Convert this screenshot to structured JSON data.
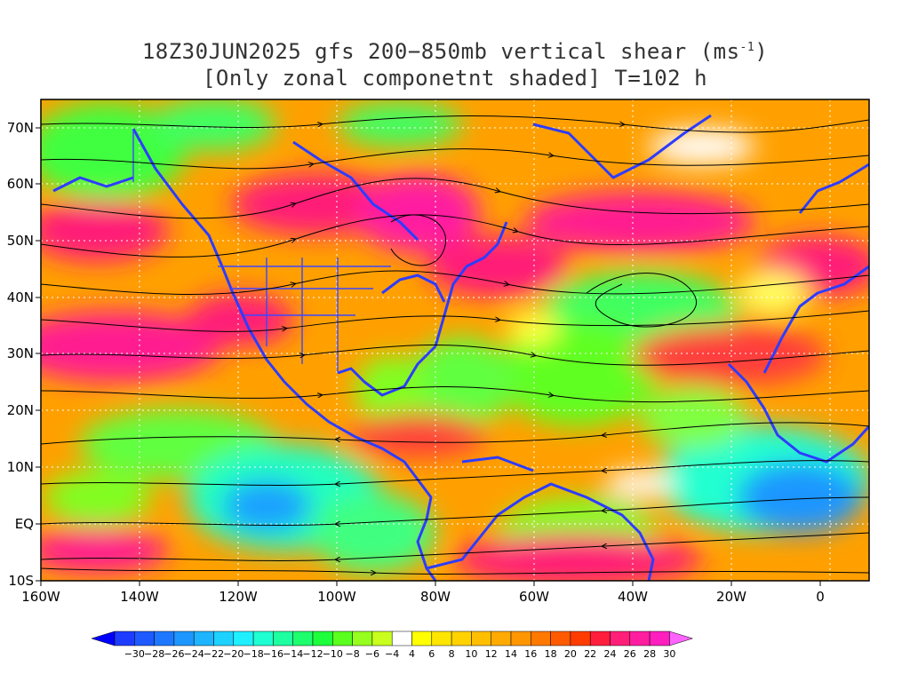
{
  "title": {
    "line1_prefix": "18Z30JUN2025 gfs 200−850mb vertical shear (ms",
    "line1_sup": "-1",
    "line1_suffix": ")",
    "line2": "[Only zonal componetnt shaded] T=102 h"
  },
  "map": {
    "lat_labels": [
      "70N",
      "60N",
      "50N",
      "40N",
      "30N",
      "20N",
      "10N",
      "EQ",
      "10S"
    ],
    "lon_labels": [
      "160W",
      "140W",
      "120W",
      "100W",
      "80W",
      "60W",
      "40W",
      "20W",
      "0"
    ],
    "grid": true,
    "shading_variable": "zonal vertical shear",
    "overlay": "streamlines"
  },
  "colorbar": {
    "labels": [
      "-30",
      "-28",
      "-26",
      "-24",
      "-22",
      "-20",
      "-18",
      "-16",
      "-14",
      "-12",
      "-10",
      "-8",
      "-6",
      "-4",
      "4",
      "6",
      "8",
      "10",
      "12",
      "14",
      "16",
      "18",
      "20",
      "22",
      "24",
      "26",
      "28",
      "30"
    ],
    "colors": [
      "#1e3cff",
      "#1e5aff",
      "#1e78ff",
      "#1e96ff",
      "#1eb4ff",
      "#1ed2ff",
      "#1ef0ff",
      "#1effd2",
      "#1effa0",
      "#1eff6e",
      "#1eff3c",
      "#5aff1e",
      "#96ff1e",
      "#c8ff1e",
      "#ffffff",
      "#ffff00",
      "#ffe600",
      "#ffd200",
      "#ffbe00",
      "#ffaa00",
      "#ff9600",
      "#ff7800",
      "#ff5a00",
      "#ff3c00",
      "#ff1e3c",
      "#ff1e78",
      "#ff1ea0",
      "#ff1ebe"
    ],
    "low_arrow_color": "#0000ff",
    "high_arrow_color": "#ff64ff"
  }
}
